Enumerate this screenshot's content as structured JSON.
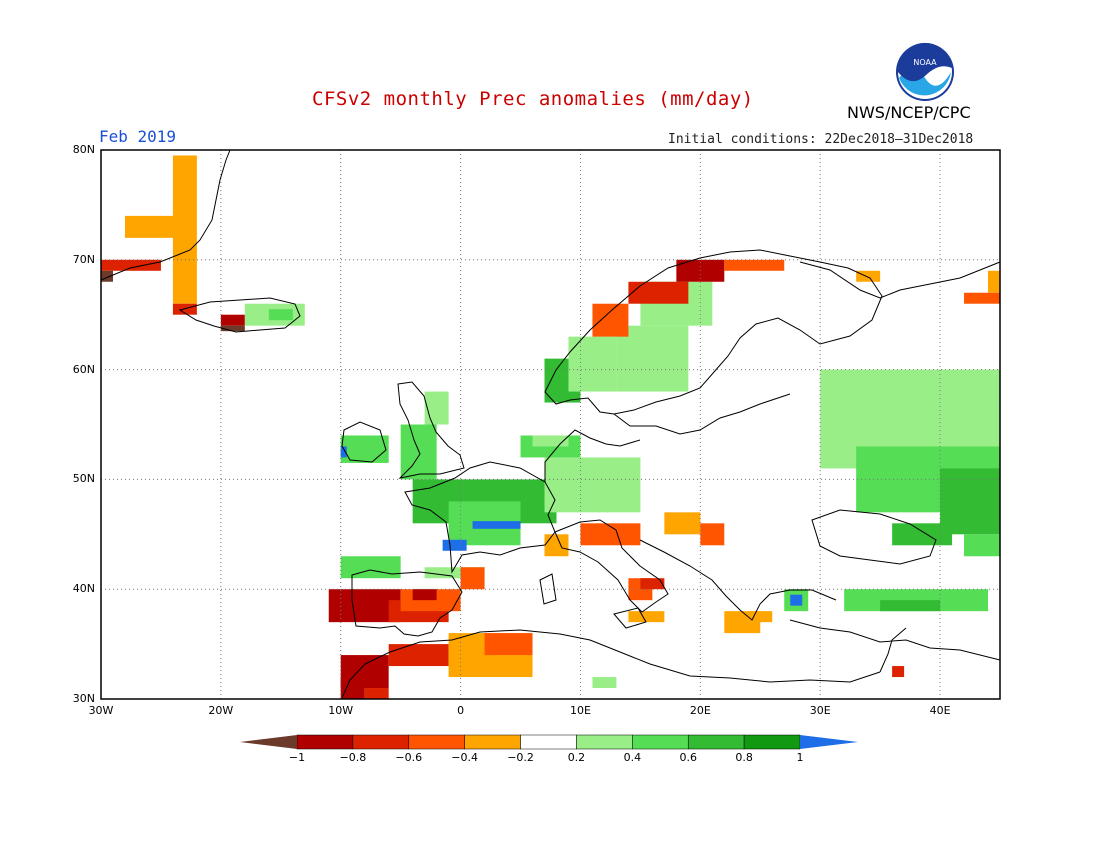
{
  "title": "CFSv2 monthly Prec anomalies (mm/day)",
  "month": "Feb 2019",
  "initial_conditions": "Initial conditions: 22Dec2018–31Dec2018",
  "agency": "NWS/NCEP/CPC",
  "logo_text": "NOAA",
  "icons": {
    "logo": "noaa-logo-icon"
  },
  "map": {
    "lat_labels": [
      "80N",
      "70N",
      "60N",
      "50N",
      "40N",
      "30N"
    ],
    "lon_labels": [
      "30W",
      "20W",
      "10W",
      "0",
      "10E",
      "20E",
      "30E",
      "40E"
    ]
  },
  "colorbar": {
    "labels": [
      "−1",
      "−0.8",
      "−0.6",
      "−0.4",
      "−0.2",
      "0.2",
      "0.4",
      "0.6",
      "0.8",
      "1"
    ],
    "colors": [
      "#6b3a2a",
      "#b00000",
      "#dd2200",
      "#ff5500",
      "#ffa500",
      "#ffffff",
      "#99ee88",
      "#55dd55",
      "#33bb33",
      "#119911",
      "#1e6ee8"
    ]
  }
}
